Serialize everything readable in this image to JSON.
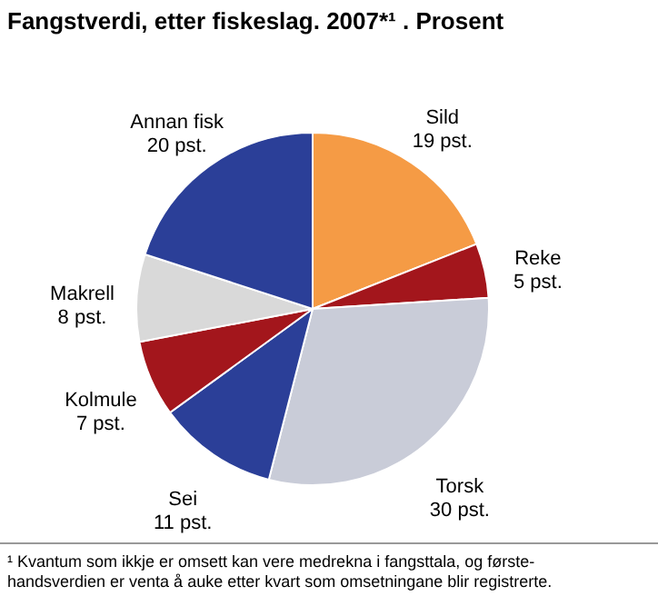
{
  "chart_data": {
    "type": "pie",
    "title": "Fangstverdi, etter fiskeslag. 2007*¹ . Prosent",
    "categories": [
      "Sild",
      "Reke",
      "Torsk",
      "Sei",
      "Kolmule",
      "Makrell",
      "Annan fisk"
    ],
    "values": [
      19,
      5,
      30,
      11,
      7,
      8,
      20
    ],
    "value_labels": [
      "19 pst.",
      "5 pst.",
      "30 pst.",
      "11 pst.",
      "7 pst.",
      "8 pst.",
      "20 pst."
    ],
    "colors": [
      "#f59b45",
      "#a3161c",
      "#c9ccd8",
      "#2b3f98",
      "#a3161c",
      "#d9d9d9",
      "#2b3f98"
    ],
    "annotations": [
      "¹ Kvantum som ikkje er omsett kan vere medrekna i fangsttala, og første-\nhandsverdien er venta å auke etter kvart som omsetningane blir registrerte."
    ]
  }
}
